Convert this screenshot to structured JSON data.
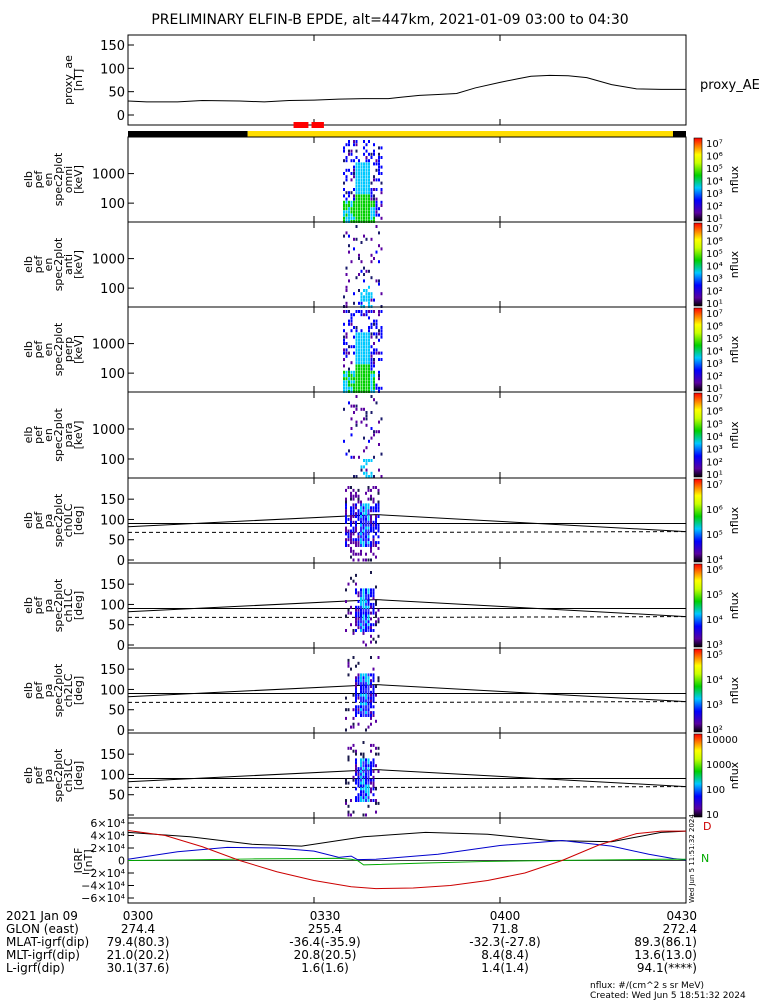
{
  "title": "PRELIMINARY ELFIN-B EPDE, alt=447km, 2021-01-09 03:00 to 04:30",
  "chart_data": [
    {
      "type": "line",
      "name": "proxy_ae",
      "ylabel": [
        "proxy_ae",
        "[nT]"
      ],
      "legend": "proxy_AE",
      "yticks": [
        "0",
        "50",
        "100",
        "150"
      ],
      "ylim": [
        0,
        150
      ],
      "x_minutes": [
        0,
        3,
        8,
        12,
        18,
        22,
        26,
        30,
        34,
        38,
        42,
        44,
        47,
        50,
        53,
        56,
        60,
        63,
        65,
        68,
        71,
        74,
        78,
        82,
        86,
        90
      ],
      "values": [
        30,
        28,
        28,
        31,
        30,
        28,
        31,
        32,
        34,
        35,
        35,
        38,
        42,
        44,
        46,
        58,
        70,
        78,
        83,
        85,
        84,
        80,
        65,
        56,
        55,
        55
      ]
    },
    {
      "type": "bar",
      "name": "orbit-status-bar",
      "segments": [
        {
          "start_min": 0,
          "end_min": 19.3,
          "color": "#000000"
        },
        {
          "start_min": 19.3,
          "end_min": 87.9,
          "color": "#ffdd00"
        },
        {
          "start_min": 87.9,
          "end_min": 90,
          "color": "#000000"
        }
      ],
      "markers": [
        {
          "start_min": 26.7,
          "end_min": 29.1,
          "color": "#ff0000"
        },
        {
          "start_min": 29.6,
          "end_min": 31.6,
          "color": "#ff0000"
        }
      ]
    },
    {
      "type": "heatmap",
      "ylabel": [
        "elb",
        "pef",
        "en",
        "spec2plot",
        "omni",
        "[keV]"
      ],
      "yticks": [
        "100",
        "1000"
      ],
      "scale": "log",
      "colorbar": {
        "ticks": [
          "10¹",
          "10²",
          "10³",
          "10⁴",
          "10⁵",
          "10⁶",
          "10⁷"
        ],
        "label": "nflux"
      }
    },
    {
      "type": "heatmap",
      "ylabel": [
        "elb",
        "pef",
        "en",
        "spec2plot",
        "anti",
        "[keV]"
      ],
      "yticks": [
        "100",
        "1000"
      ],
      "scale": "log",
      "colorbar": {
        "ticks": [
          "10¹",
          "10²",
          "10³",
          "10⁴",
          "10⁵",
          "10⁶",
          "10⁷"
        ],
        "label": "nflux"
      }
    },
    {
      "type": "heatmap",
      "ylabel": [
        "elb",
        "pef",
        "en",
        "spec2plot",
        "perp",
        "[keV]"
      ],
      "yticks": [
        "100",
        "1000"
      ],
      "scale": "log",
      "colorbar": {
        "ticks": [
          "10¹",
          "10²",
          "10³",
          "10⁴",
          "10⁵",
          "10⁶",
          "10⁷"
        ],
        "label": "nflux"
      }
    },
    {
      "type": "heatmap",
      "ylabel": [
        "elb",
        "pef",
        "en",
        "spec2plot",
        "para",
        "[keV]"
      ],
      "yticks": [
        "100",
        "1000"
      ],
      "scale": "log",
      "colorbar": {
        "ticks": [
          "10¹",
          "10²",
          "10³",
          "10⁴",
          "10⁵",
          "10⁶",
          "10⁷"
        ],
        "label": "nflux"
      }
    },
    {
      "type": "heatmap",
      "ylabel": [
        "elb",
        "pef",
        "pa",
        "spec2plot",
        "ch0LC",
        "[deg]"
      ],
      "yticks": [
        "0",
        "50",
        "100",
        "150"
      ],
      "colorbar": {
        "ticks": [
          "10⁴",
          "10⁵",
          "10⁶",
          "10⁷"
        ],
        "label": "nflux"
      }
    },
    {
      "type": "heatmap",
      "ylabel": [
        "elb",
        "pef",
        "pa",
        "spec2plot",
        "ch1LC",
        "[deg]"
      ],
      "yticks": [
        "0",
        "50",
        "100",
        "150"
      ],
      "colorbar": {
        "ticks": [
          "10³",
          "10⁴",
          "10⁵",
          "10⁶"
        ],
        "label": "nflux"
      }
    },
    {
      "type": "heatmap",
      "ylabel": [
        "elb",
        "pef",
        "pa",
        "spec2plot",
        "ch2LC",
        "[deg]"
      ],
      "yticks": [
        "0",
        "50",
        "100",
        "150"
      ],
      "colorbar": {
        "ticks": [
          "10²",
          "10³",
          "10⁴",
          "10⁵"
        ],
        "label": "nflux"
      }
    },
    {
      "type": "heatmap",
      "ylabel": [
        "elb",
        "pef",
        "pa",
        "spec2plot",
        "ch3LC",
        "[deg]"
      ],
      "yticks": [
        "50",
        "100",
        "150"
      ],
      "colorbar": {
        "ticks": [
          "10",
          "100",
          "1000",
          "10000"
        ],
        "label": "nflux"
      }
    },
    {
      "type": "line",
      "name": "igrf",
      "ylabel": [
        "IGRF",
        "[nT]"
      ],
      "yticks": [
        "−6×10⁴",
        "−4×10⁴",
        "−2×10⁴",
        "0",
        "2×10⁴",
        "4×10⁴",
        "6×10⁴"
      ],
      "ylim": [
        -60000,
        60000
      ],
      "series_labels": [
        "D",
        "N"
      ],
      "series": [
        {
          "color": "#000000",
          "x": [
            0,
            10,
            20,
            28,
            38,
            48,
            58,
            68,
            78,
            86,
            90
          ],
          "values": [
            45000,
            38000,
            26000,
            23000,
            38000,
            45000,
            42000,
            32000,
            30000,
            45000,
            47000
          ]
        },
        {
          "color": "#0000cc",
          "x": [
            0,
            8,
            16,
            24,
            30,
            34,
            36,
            37,
            40,
            50,
            60,
            70,
            78,
            84,
            88,
            90
          ],
          "values": [
            2000,
            14000,
            21000,
            20000,
            15000,
            5000,
            7000,
            1500,
            2000,
            10000,
            24000,
            32000,
            23000,
            10000,
            3000,
            1000
          ]
        },
        {
          "color": "#00aa00",
          "x": [
            0,
            10,
            20,
            28,
            34,
            36,
            37,
            38,
            48,
            58,
            68,
            78,
            86,
            90
          ],
          "values": [
            0,
            1000,
            2500,
            3000,
            3500,
            2000,
            0,
            -7000,
            -4000,
            -1500,
            0,
            1000,
            2000,
            2000
          ]
        },
        {
          "color": "#cc0000",
          "x": [
            0,
            6,
            12,
            18,
            24,
            30,
            36,
            40,
            46,
            52,
            58,
            64,
            70,
            76,
            82,
            86,
            90
          ],
          "values": [
            48000,
            40000,
            22000,
            0,
            -18000,
            -32000,
            -42000,
            -45000,
            -44000,
            -40000,
            -32000,
            -20000,
            0,
            25000,
            43000,
            47000,
            47000
          ]
        }
      ]
    }
  ],
  "x_ticks": [
    "0300",
    "0330",
    "0400",
    "0430"
  ],
  "orbit_table": [
    {
      "label": "2021 Jan 09",
      "v": [
        "0300",
        "0330",
        "0400",
        "0430"
      ]
    },
    {
      "label": "GLON (east)",
      "v": [
        "274.4",
        "255.4",
        "71.8",
        "272.4"
      ]
    },
    {
      "label": "MLAT-igrf(dip)",
      "v": [
        "79.4(80.3)",
        "-36.4(-35.9)",
        "-32.3(-27.8)",
        "89.3(86.1)"
      ]
    },
    {
      "label": "MLT-igrf(dip)",
      "v": [
        "21.0(20.2)",
        "20.8(20.5)",
        "8.4(8.4)",
        "13.6(13.0)"
      ]
    },
    {
      "label": "L-igrf(dip)",
      "v": [
        "30.1(37.6)",
        "1.6(1.6)",
        "1.4(1.4)",
        "94.1(****)"
      ]
    }
  ],
  "footer": {
    "units": "nflux: #/(cm^2 s sr MeV)",
    "created": "Created: Wed Jun  5 18:51:32 2024",
    "vertical_stamp": "Wed Jun  5 11:51:32 2024"
  }
}
